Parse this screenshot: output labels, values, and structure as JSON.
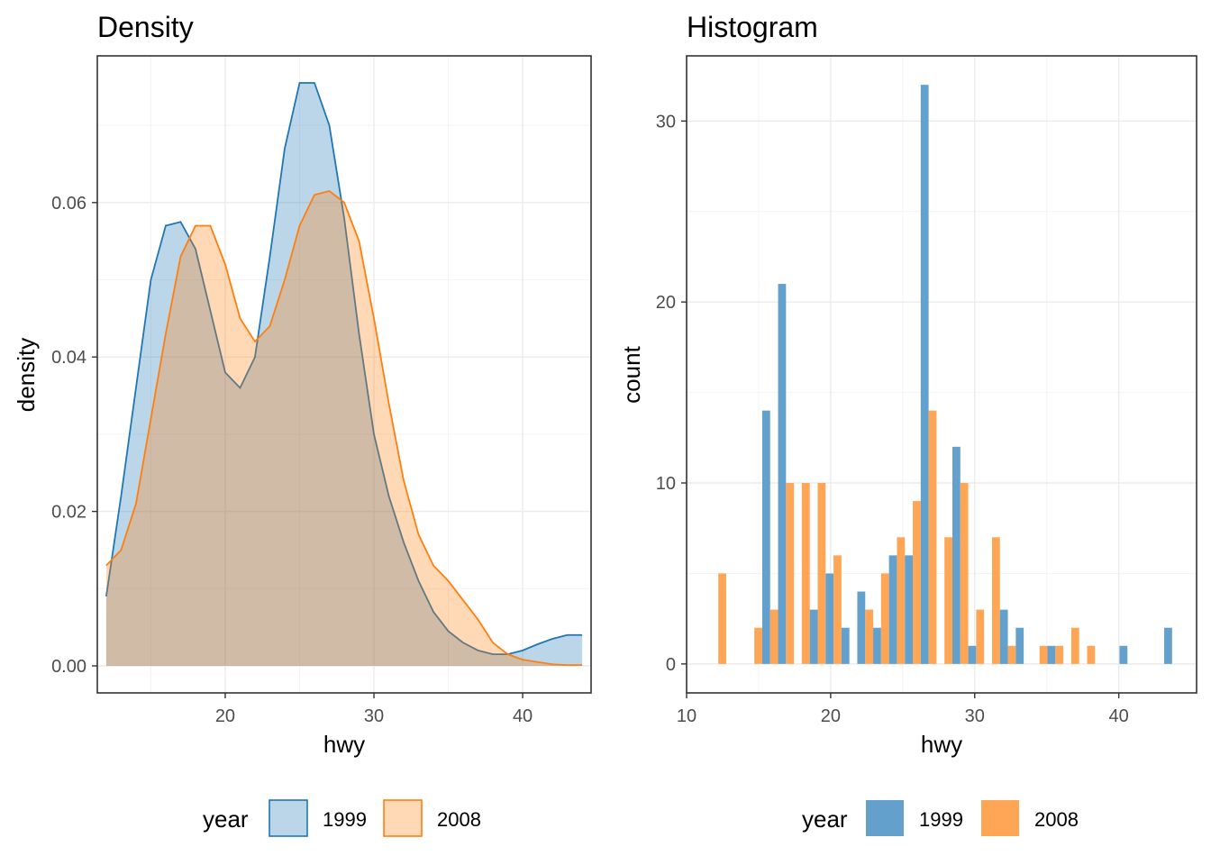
{
  "chart_data": [
    {
      "type": "area",
      "title": "Density",
      "xlabel": "hwy",
      "ylabel": "density",
      "xlim": [
        11.4,
        44.6
      ],
      "ylim": [
        -0.0035,
        0.079
      ],
      "x_ticks": [
        20,
        30,
        40
      ],
      "y_ticks": [
        0.0,
        0.02,
        0.04,
        0.06
      ],
      "y_tick_labels": [
        "0.00",
        "0.02",
        "0.04",
        "0.06"
      ],
      "grid": true,
      "legend": {
        "title": "year",
        "position": "bottom"
      },
      "series": [
        {
          "name": "1999",
          "color": "#1f77b4",
          "fill": "#1f77b4",
          "x": [
            12,
            13,
            14,
            15,
            16,
            17,
            18,
            19,
            20,
            21,
            22,
            23,
            24,
            25,
            26,
            27,
            28,
            29,
            30,
            31,
            32,
            33,
            34,
            35,
            36,
            37,
            38,
            39,
            40,
            41,
            42,
            43,
            44
          ],
          "y": [
            0.009,
            0.022,
            0.036,
            0.05,
            0.057,
            0.0575,
            0.054,
            0.046,
            0.038,
            0.036,
            0.04,
            0.053,
            0.067,
            0.0755,
            0.0755,
            0.07,
            0.058,
            0.043,
            0.03,
            0.022,
            0.016,
            0.011,
            0.007,
            0.0045,
            0.003,
            0.002,
            0.0015,
            0.0015,
            0.002,
            0.0028,
            0.0035,
            0.004,
            0.004
          ]
        },
        {
          "name": "2008",
          "color": "#ff7f0e",
          "fill": "#ff7f0e",
          "x": [
            12,
            13,
            14,
            15,
            16,
            17,
            18,
            19,
            20,
            21,
            22,
            23,
            24,
            25,
            26,
            27,
            28,
            29,
            30,
            31,
            32,
            33,
            34,
            35,
            36,
            37,
            38,
            39,
            40,
            41,
            42,
            43,
            44
          ],
          "y": [
            0.013,
            0.015,
            0.021,
            0.032,
            0.043,
            0.053,
            0.057,
            0.057,
            0.052,
            0.045,
            0.042,
            0.044,
            0.05,
            0.057,
            0.061,
            0.0615,
            0.06,
            0.055,
            0.045,
            0.034,
            0.024,
            0.017,
            0.013,
            0.011,
            0.0085,
            0.006,
            0.003,
            0.0015,
            0.0008,
            0.0005,
            0.0002,
            0.0001,
            0.0001
          ]
        }
      ]
    },
    {
      "type": "bar",
      "title": "Histogram",
      "xlabel": "hwy",
      "ylabel": "count",
      "xlim": [
        10,
        45.4
      ],
      "ylim": [
        -1.6,
        33.6
      ],
      "x_ticks": [
        10,
        20,
        30,
        40
      ],
      "y_ticks": [
        0,
        10,
        20,
        30
      ],
      "bin_width": 1.1,
      "grid": true,
      "legend": {
        "title": "year",
        "position": "bottom"
      },
      "bin_centers": [
        12.2,
        14.7,
        15.8,
        16.9,
        18.0,
        19.1,
        20.2,
        21.3,
        22.4,
        23.5,
        24.6,
        25.7,
        26.8,
        27.9,
        29.0,
        30.1,
        31.2,
        32.3,
        33.4,
        34.5,
        35.6,
        36.7,
        37.8,
        40.6,
        43.7
      ],
      "series": [
        {
          "name": "1999",
          "color": "#63a1cc",
          "values": [
            0,
            0,
            14,
            21,
            0,
            3,
            5,
            2,
            4,
            2,
            6,
            6,
            32,
            0,
            12,
            1,
            0,
            3,
            2,
            0,
            1,
            0,
            0,
            1,
            2
          ]
        },
        {
          "name": "2008",
          "color": "#ffa656",
          "values": [
            5,
            2,
            3,
            10,
            10,
            10,
            6,
            0,
            3,
            5,
            7,
            9,
            14,
            7,
            10,
            3,
            7,
            1,
            0,
            1,
            1,
            2,
            1,
            0,
            0
          ]
        }
      ]
    }
  ]
}
